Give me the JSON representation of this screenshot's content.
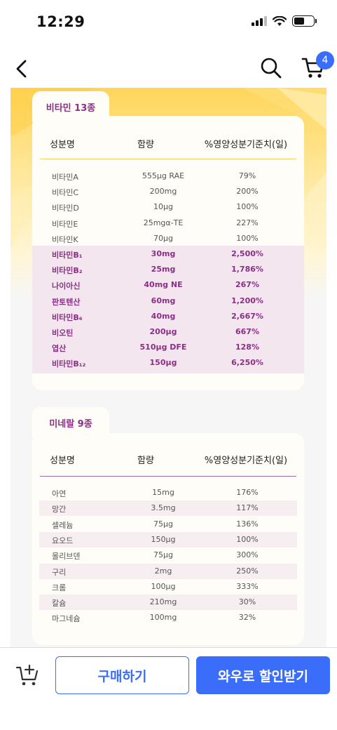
{
  "status_bar": {
    "time": "12:29"
  },
  "nav": {
    "cart_count": "4"
  },
  "vitamins": {
    "tab_label": "비타민 13종",
    "headers": {
      "name": "성분명",
      "amount": "함량",
      "ratio": "%영양성분기준치(일)"
    },
    "rows": [
      {
        "name": "비타민A",
        "amount": "555μg RAE",
        "ratio": "79%",
        "highlight": false
      },
      {
        "name": "비타민C",
        "amount": "200mg",
        "ratio": "200%",
        "highlight": false
      },
      {
        "name": "비타민D",
        "amount": "10μg",
        "ratio": "100%",
        "highlight": false
      },
      {
        "name": "비타민E",
        "amount": "25mgα-TE",
        "ratio": "227%",
        "highlight": false
      },
      {
        "name": "비타민K",
        "amount": "70μg",
        "ratio": "100%",
        "highlight": false
      },
      {
        "name": "비타민B₁",
        "amount": "30mg",
        "ratio": "2,500%",
        "highlight": true
      },
      {
        "name": "비타민B₂",
        "amount": "25mg",
        "ratio": "1,786%",
        "highlight": true
      },
      {
        "name": "나이아신",
        "amount": "40mg NE",
        "ratio": "267%",
        "highlight": true
      },
      {
        "name": "판토텐산",
        "amount": "60mg",
        "ratio": "1,200%",
        "highlight": true
      },
      {
        "name": "비타민B₆",
        "amount": "40mg",
        "ratio": "2,667%",
        "highlight": true
      },
      {
        "name": "비오틴",
        "amount": "200μg",
        "ratio": "667%",
        "highlight": true
      },
      {
        "name": "엽산",
        "amount": "510μg DFE",
        "ratio": "128%",
        "highlight": true
      },
      {
        "name": "비타민B₁₂",
        "amount": "150μg",
        "ratio": "6,250%",
        "highlight": true
      }
    ]
  },
  "minerals": {
    "tab_label": "미네랄 9종",
    "headers": {
      "name": "성분명",
      "amount": "함량",
      "ratio": "%영양성분기준치(일)"
    },
    "rows": [
      {
        "name": "아연",
        "amount": "15mg",
        "ratio": "176%"
      },
      {
        "name": "망간",
        "amount": "3.5mg",
        "ratio": "117%"
      },
      {
        "name": "셀레늄",
        "amount": "75μg",
        "ratio": "136%"
      },
      {
        "name": "요오드",
        "amount": "150μg",
        "ratio": "100%"
      },
      {
        "name": "몰리브덴",
        "amount": "75μg",
        "ratio": "300%"
      },
      {
        "name": "구리",
        "amount": "2mg",
        "ratio": "250%"
      },
      {
        "name": "크롬",
        "amount": "100μg",
        "ratio": "333%"
      },
      {
        "name": "칼슘",
        "amount": "210mg",
        "ratio": "30%"
      },
      {
        "name": "마그네슘",
        "amount": "100mg",
        "ratio": "32%"
      }
    ]
  },
  "bottom_bar": {
    "buy_label": "구매하기",
    "wow_label": "와우로 할인받기"
  },
  "colors": {
    "accent": "#3a6dfa",
    "purple": "#8a2f86",
    "highlight_row": "#f3e6ee",
    "yellow": "#ffd55a"
  }
}
